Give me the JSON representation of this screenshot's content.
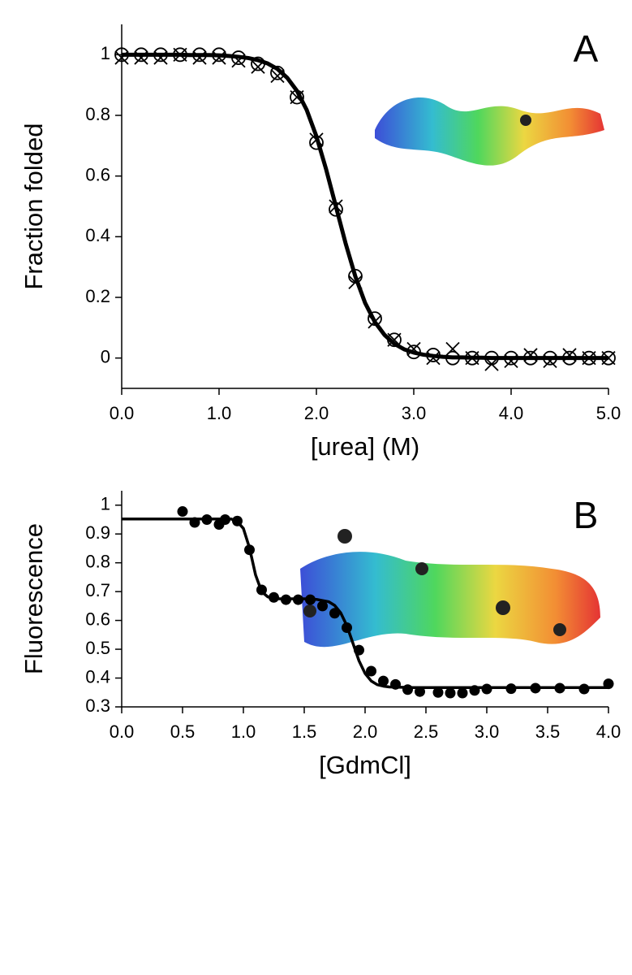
{
  "chart_data": [
    {
      "type": "scatter",
      "panel_label": "A",
      "xlabel": "[urea] (M)",
      "ylabel": "Fraction folded",
      "xlim": [
        0,
        5
      ],
      "ylim": [
        -0.1,
        1.1
      ],
      "xticks": [
        {
          "value": 0,
          "label": "0.0"
        },
        {
          "value": 1,
          "label": "1.0"
        },
        {
          "value": 2,
          "label": "2.0"
        },
        {
          "value": 3,
          "label": "3.0"
        },
        {
          "value": 4,
          "label": "4.0"
        },
        {
          "value": 5,
          "label": "5.0"
        }
      ],
      "yticks": [
        0,
        0.2,
        0.4,
        0.6,
        0.8,
        1
      ],
      "x": [
        0,
        0.2,
        0.4,
        0.6,
        0.8,
        1.0,
        1.2,
        1.4,
        1.6,
        1.8,
        2.0,
        2.2,
        2.4,
        2.6,
        2.8,
        3.0,
        3.2,
        3.4,
        3.6,
        3.8,
        4.0,
        4.2,
        4.4,
        4.6,
        4.8,
        5.0
      ],
      "series": [
        {
          "marker": "circle",
          "color": "#000000",
          "values": [
            1,
            1,
            1,
            1,
            1,
            1,
            0.99,
            0.97,
            0.94,
            0.86,
            0.71,
            0.49,
            0.27,
            0.13,
            0.06,
            0.02,
            0.01,
            0,
            0,
            0,
            0,
            0,
            0,
            0,
            0,
            0
          ]
        },
        {
          "marker": "cross",
          "color": "#000000",
          "values": [
            0.99,
            0.99,
            0.99,
            1,
            0.99,
            0.99,
            0.98,
            0.96,
            0.93,
            0.86,
            0.72,
            0.5,
            0.25,
            0.12,
            0.06,
            0.03,
            0,
            0.03,
            0,
            -0.02,
            -0.01,
            0.01,
            -0.01,
            0.01,
            0,
            0
          ]
        },
        {
          "marker": "line",
          "color": "#000000",
          "x": [
            0,
            0.1,
            0.2,
            0.3,
            0.4,
            0.5,
            0.6,
            0.7,
            0.8,
            0.9,
            1.0,
            1.1,
            1.2,
            1.3,
            1.4,
            1.5,
            1.6,
            1.7,
            1.8,
            1.9,
            2.0,
            2.1,
            2.2,
            2.3,
            2.4,
            2.5,
            2.6,
            2.7,
            2.8,
            2.9,
            3.0,
            3.1,
            3.2,
            3.3,
            3.4,
            3.5,
            3.6,
            3.7,
            3.8,
            3.9,
            4.0,
            4.1,
            4.2,
            4.3,
            4.4,
            4.5,
            4.6,
            4.7,
            4.8,
            4.9,
            5.0
          ],
          "values": [
            1,
            1,
            1,
            1,
            1,
            1,
            1,
            0.999,
            0.999,
            0.999,
            0.998,
            0.996,
            0.993,
            0.989,
            0.982,
            0.971,
            0.953,
            0.924,
            0.881,
            0.818,
            0.731,
            0.622,
            0.5,
            0.378,
            0.269,
            0.182,
            0.119,
            0.076,
            0.047,
            0.029,
            0.018,
            0.011,
            0.007,
            0.004,
            0.002,
            0.002,
            0.001,
            0.001,
            0,
            0,
            0,
            0,
            0,
            0,
            0,
            0,
            0,
            0,
            0,
            0,
            0
          ]
        }
      ]
    },
    {
      "type": "scatter",
      "panel_label": "B",
      "xlabel": "[GdmCl]",
      "ylabel": "Fluorescence",
      "xlim": [
        0,
        4
      ],
      "ylim": [
        0.3,
        1.05
      ],
      "xticks": [
        {
          "value": 0,
          "label": "0.0"
        },
        0.5,
        {
          "value": 1,
          "label": "1.0"
        },
        1.5,
        {
          "value": 2,
          "label": "2.0"
        },
        2.5,
        {
          "value": 3,
          "label": "3.0"
        },
        3.5,
        {
          "value": 4,
          "label": "4.0"
        }
      ],
      "yticks": [
        0.3,
        0.4,
        0.5,
        0.6,
        0.7,
        0.8,
        0.9,
        1
      ],
      "x": [
        0.5,
        0.6,
        0.7,
        0.8,
        0.85,
        0.95,
        1.05,
        1.15,
        1.25,
        1.35,
        1.45,
        1.55,
        1.65,
        1.75,
        1.85,
        1.95,
        2.05,
        2.15,
        2.25,
        2.35,
        2.45,
        2.6,
        2.7,
        2.8,
        2.9,
        3.0,
        3.2,
        3.4,
        3.6,
        3.8,
        4.0
      ],
      "series": [
        {
          "marker": "dot",
          "color": "#000000",
          "values": [
            0.978,
            0.94,
            0.95,
            0.933,
            0.95,
            0.945,
            0.845,
            0.706,
            0.68,
            0.672,
            0.672,
            0.672,
            0.65,
            0.625,
            0.575,
            0.497,
            0.424,
            0.39,
            0.378,
            0.36,
            0.353,
            0.35,
            0.348,
            0.348,
            0.357,
            0.362,
            0.363,
            0.365,
            0.365,
            0.362,
            0.38
          ]
        },
        {
          "marker": "line",
          "color": "#000000",
          "x": [
            0,
            0.5,
            0.9,
            0.95,
            1.0,
            1.05,
            1.1,
            1.15,
            1.2,
            1.25,
            1.3,
            1.5,
            1.6,
            1.7,
            1.75,
            1.8,
            1.85,
            1.9,
            1.95,
            2.0,
            2.05,
            2.1,
            2.15,
            2.2,
            2.3,
            2.4,
            4.0
          ],
          "values": [
            0.952,
            0.952,
            0.952,
            0.943,
            0.919,
            0.852,
            0.758,
            0.7,
            0.682,
            0.676,
            0.675,
            0.675,
            0.673,
            0.665,
            0.652,
            0.626,
            0.582,
            0.521,
            0.46,
            0.416,
            0.39,
            0.377,
            0.372,
            0.369,
            0.368,
            0.367,
            0.367
          ]
        }
      ]
    }
  ]
}
